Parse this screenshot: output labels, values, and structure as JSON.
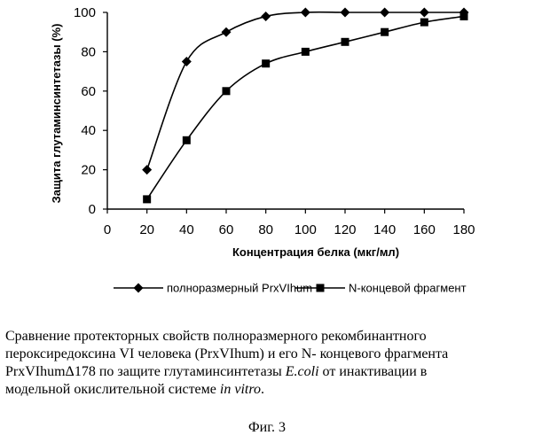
{
  "chart_data": {
    "type": "line",
    "x": [
      20,
      40,
      60,
      80,
      100,
      120,
      140,
      160,
      180
    ],
    "xlabel": "Концентрация белка (мкг/мл)",
    "ylabel": "Защита глутаминсинтетазы   (%)",
    "xlim": [
      0,
      180
    ],
    "ylim": [
      0,
      100
    ],
    "xticks": [
      "0",
      "20",
      "40",
      "60",
      "80",
      "100",
      "120",
      "140",
      "160",
      "180"
    ],
    "yticks": [
      "0",
      "20",
      "40",
      "60",
      "80",
      "100"
    ],
    "grid": false,
    "legend_position": "bottom",
    "series": [
      {
        "name": "полноразмерный PrxVIhum",
        "marker": "diamond",
        "color": "#000000",
        "values": [
          20,
          75,
          90,
          98,
          100,
          100,
          100,
          100,
          100
        ]
      },
      {
        "name": "N-концевой фрагмент",
        "marker": "square",
        "color": "#000000",
        "values": [
          5,
          35,
          60,
          74,
          80,
          85,
          90,
          95,
          98
        ]
      }
    ]
  },
  "caption": {
    "line1": "Сравнение протекторных свойств полноразмерного рекомбинантного",
    "line2": "пероксиредоксина VI человека (PrxVIhum)  и его N- концевого фрагмента",
    "line3_a": "PrxVIhumΔ178  по защите глутаминсинтетазы ",
    "line3_b": "E.coli",
    "line3_c": " от инактивации в",
    "line4_a": "модельной окислительной системе ",
    "line4_b": "in vitro",
    "line4_c": "."
  },
  "figure_label": "Фиг. 3"
}
